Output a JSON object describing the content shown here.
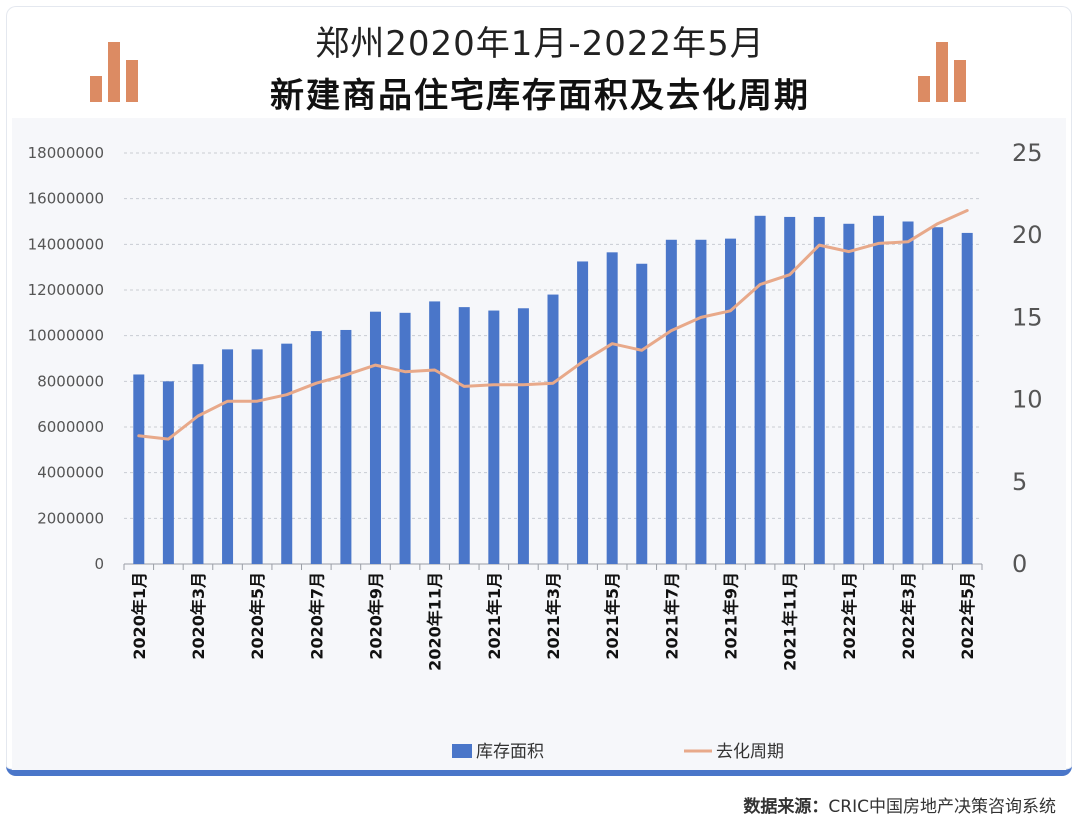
{
  "header": {
    "title_line1": "郑州2020年1月-2022年5月",
    "title_line2": "新建商品住宅库存面积及去化周期"
  },
  "footer": {
    "source_label": "数据来源：",
    "source_text": "CRIC中国房地产决策咨询系统"
  },
  "colors": {
    "bar": "#4a76c9",
    "line": "#e8a98a",
    "deco": "#dc8b63"
  },
  "chart_data": {
    "type": "bar",
    "title": "郑州2020年1月-2022年5月 新建商品住宅库存面积及去化周期",
    "categories": [
      "2020年1月",
      "2020年2月",
      "2020年3月",
      "2020年4月",
      "2020年5月",
      "2020年6月",
      "2020年7月",
      "2020年8月",
      "2020年9月",
      "2020年10月",
      "2020年11月",
      "2020年12月",
      "2021年1月",
      "2021年2月",
      "2021年3月",
      "2021年4月",
      "2021年5月",
      "2021年6月",
      "2021年7月",
      "2021年8月",
      "2021年9月",
      "2021年10月",
      "2021年11月",
      "2021年12月",
      "2022年1月",
      "2022年2月",
      "2022年3月",
      "2022年4月",
      "2022年5月"
    ],
    "shown_tick_labels": [
      "2020年1月",
      "2020年3月",
      "2020年5月",
      "2020年7月",
      "2020年9月",
      "2020年11月",
      "2021年1月",
      "2021年3月",
      "2021年5月",
      "2021年7月",
      "2021年9月",
      "2021年11月",
      "2022年1月",
      "2022年3月",
      "2022年5月"
    ],
    "series": [
      {
        "name": "库存面积",
        "type": "bar",
        "axis": "left",
        "values": [
          8300000,
          8000000,
          8750000,
          9400000,
          9400000,
          9650000,
          10200000,
          10250000,
          11050000,
          11000000,
          11500000,
          11250000,
          11100000,
          11200000,
          11800000,
          13250000,
          13650000,
          13150000,
          14200000,
          14200000,
          14250000,
          15250000,
          15200000,
          15200000,
          14900000,
          15250000,
          15000000,
          14750000,
          14500000
        ]
      },
      {
        "name": "去化周期",
        "type": "line",
        "axis": "right",
        "values": [
          7.8,
          7.6,
          9.0,
          9.9,
          9.9,
          10.3,
          11.0,
          11.5,
          12.1,
          11.7,
          11.8,
          10.8,
          10.9,
          10.9,
          11.0,
          12.3,
          13.4,
          13.0,
          14.2,
          15.0,
          15.4,
          17.0,
          17.6,
          19.4,
          19.0,
          19.5,
          19.6,
          20.7,
          21.5
        ]
      }
    ],
    "y_left": {
      "min": 0,
      "max": 18000000,
      "step": 2000000,
      "ticks": [
        "0",
        "2000000",
        "4000000",
        "6000000",
        "8000000",
        "10000000",
        "12000000",
        "14000000",
        "16000000",
        "18000000"
      ]
    },
    "y_right": {
      "min": 0,
      "max": 25,
      "step": 5,
      "ticks": [
        "0",
        "5",
        "10",
        "15",
        "20",
        "25"
      ]
    },
    "grid": true,
    "legend": {
      "position": "bottom",
      "items": [
        "库存面积",
        "去化周期"
      ]
    }
  }
}
